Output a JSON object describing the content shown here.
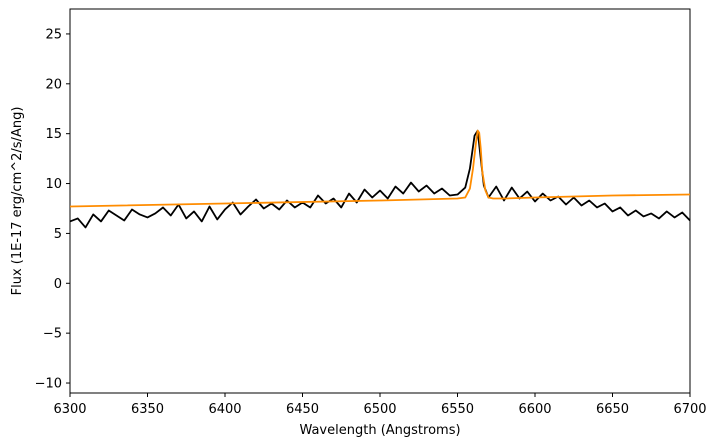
{
  "chart_data": {
    "type": "line",
    "title": "",
    "xlabel": "Wavelength (Angstroms)",
    "ylabel": "Flux (1E-17 erg/cm^2/s/Ang)",
    "xlim": [
      6300,
      6700
    ],
    "ylim": [
      -11,
      27.5
    ],
    "xticks": [
      6300,
      6350,
      6400,
      6450,
      6500,
      6550,
      6600,
      6650,
      6700
    ],
    "yticks": [
      -10,
      -5,
      0,
      5,
      10,
      15,
      20,
      25
    ],
    "xtick_labels": [
      "6300",
      "6350",
      "6400",
      "6450",
      "6500",
      "6550",
      "6600",
      "6650",
      "6700"
    ],
    "ytick_labels": [
      "−10",
      "−5",
      "0",
      "5",
      "10",
      "15",
      "20",
      "25"
    ],
    "grid": false,
    "legend": "none",
    "series": [
      {
        "color": "#000000",
        "x": [
          6300,
          6305,
          6310,
          6315,
          6320,
          6325,
          6330,
          6335,
          6340,
          6345,
          6350,
          6355,
          6360,
          6365,
          6370,
          6375,
          6380,
          6385,
          6390,
          6395,
          6400,
          6405,
          6410,
          6415,
          6420,
          6425,
          6430,
          6435,
          6440,
          6445,
          6450,
          6455,
          6460,
          6465,
          6470,
          6475,
          6480,
          6485,
          6490,
          6495,
          6500,
          6505,
          6510,
          6515,
          6520,
          6525,
          6530,
          6535,
          6540,
          6545,
          6550,
          6555,
          6558,
          6561,
          6563,
          6565,
          6567,
          6570,
          6575,
          6580,
          6585,
          6590,
          6595,
          6600,
          6605,
          6610,
          6615,
          6620,
          6625,
          6630,
          6635,
          6640,
          6645,
          6650,
          6655,
          6660,
          6665,
          6670,
          6675,
          6680,
          6685,
          6690,
          6695,
          6700
        ],
        "y": [
          6.2,
          6.5,
          5.6,
          6.9,
          6.2,
          7.3,
          6.8,
          6.3,
          7.4,
          6.9,
          6.6,
          7.0,
          7.6,
          6.8,
          7.9,
          6.5,
          7.2,
          6.2,
          7.7,
          6.4,
          7.4,
          8.1,
          6.9,
          7.7,
          8.4,
          7.5,
          8.0,
          7.4,
          8.3,
          7.6,
          8.1,
          7.6,
          8.8,
          8.0,
          8.5,
          7.6,
          9.0,
          8.1,
          9.4,
          8.6,
          9.3,
          8.5,
          9.7,
          9.0,
          10.1,
          9.2,
          9.8,
          9.0,
          9.5,
          8.8,
          8.9,
          9.6,
          11.5,
          14.8,
          15.3,
          12.5,
          9.8,
          8.6,
          9.7,
          8.3,
          9.6,
          8.5,
          9.2,
          8.2,
          9.0,
          8.3,
          8.7,
          7.9,
          8.6,
          7.8,
          8.3,
          7.6,
          8.0,
          7.2,
          7.6,
          6.8,
          7.3,
          6.7,
          7.0,
          6.5,
          7.2,
          6.6,
          7.1,
          6.3
        ]
      },
      {
        "color": "#ff8c00",
        "x": [
          6300,
          6400,
          6500,
          6550,
          6555,
          6558,
          6560,
          6562,
          6563,
          6564,
          6565,
          6566,
          6568,
          6570,
          6573,
          6580,
          6600,
          6650,
          6700
        ],
        "y": [
          7.7,
          8.0,
          8.3,
          8.5,
          8.6,
          9.5,
          11.5,
          14.2,
          15.3,
          15.1,
          13.5,
          11.2,
          9.3,
          8.6,
          8.5,
          8.5,
          8.6,
          8.8,
          8.9
        ]
      }
    ]
  }
}
